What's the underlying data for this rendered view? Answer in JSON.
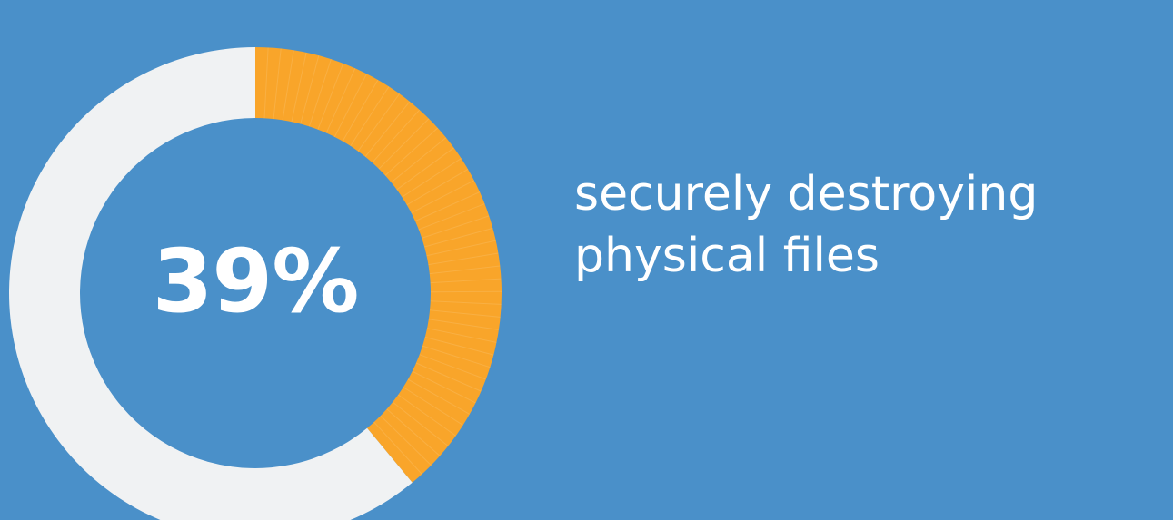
{
  "chart_data": {
    "type": "pie",
    "values": [
      39,
      61
    ],
    "value_label": "39%",
    "description_lines": [
      "securely destroying",
      "physical files"
    ]
  },
  "colors": {
    "background": "#4a90c9",
    "highlight": "#f9a52a",
    "remainder": "#f0f2f3",
    "text": "#ffffff"
  }
}
